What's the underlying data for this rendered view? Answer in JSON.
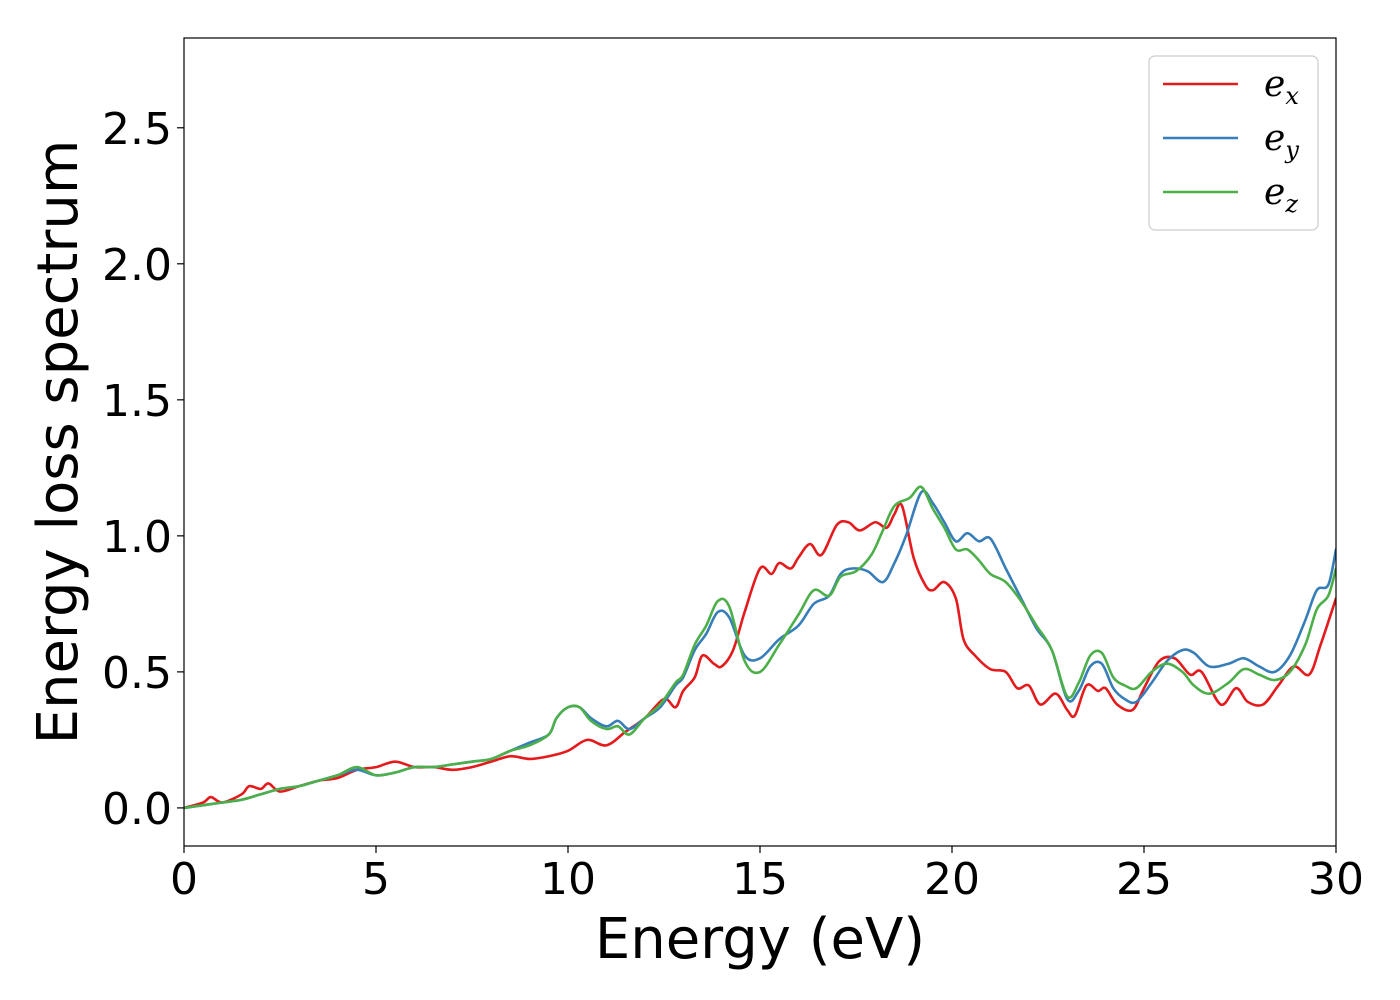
{
  "chart_data": {
    "type": "line",
    "xlabel": "Energy (eV)",
    "ylabel": "Energy loss spectrum",
    "xlim": [
      0,
      30
    ],
    "ylim": [
      -0.14,
      2.83
    ],
    "xticks": [
      0,
      5,
      10,
      15,
      20,
      25,
      30
    ],
    "xtick_labels": [
      "0",
      "5",
      "10",
      "15",
      "20",
      "25",
      "30"
    ],
    "yticks": [
      0.0,
      0.5,
      1.0,
      1.5,
      2.0,
      2.5
    ],
    "ytick_labels": [
      "0.0",
      "0.5",
      "1.0",
      "1.5",
      "2.0",
      "2.5"
    ],
    "grid": false,
    "legend_position": "top-right",
    "series": [
      {
        "name": "e_x",
        "legend_base": "e",
        "legend_sub": "x",
        "color": "#e41a1c",
        "points": [
          [
            0,
            0
          ],
          [
            0.5,
            0.02
          ],
          [
            0.7,
            0.04
          ],
          [
            1,
            0.02
          ],
          [
            1.5,
            0.05
          ],
          [
            1.7,
            0.08
          ],
          [
            2,
            0.07
          ],
          [
            2.2,
            0.09
          ],
          [
            2.5,
            0.06
          ],
          [
            3,
            0.08
          ],
          [
            3.5,
            0.1
          ],
          [
            4,
            0.11
          ],
          [
            4.5,
            0.14
          ],
          [
            5,
            0.15
          ],
          [
            5.5,
            0.17
          ],
          [
            6,
            0.15
          ],
          [
            6.5,
            0.15
          ],
          [
            7,
            0.14
          ],
          [
            7.5,
            0.15
          ],
          [
            8,
            0.17
          ],
          [
            8.5,
            0.19
          ],
          [
            9,
            0.18
          ],
          [
            9.5,
            0.19
          ],
          [
            10,
            0.21
          ],
          [
            10.5,
            0.25
          ],
          [
            11,
            0.23
          ],
          [
            11.5,
            0.28
          ],
          [
            12,
            0.33
          ],
          [
            12.5,
            0.4
          ],
          [
            12.8,
            0.37
          ],
          [
            13,
            0.43
          ],
          [
            13.3,
            0.48
          ],
          [
            13.5,
            0.56
          ],
          [
            13.8,
            0.53
          ],
          [
            14,
            0.52
          ],
          [
            14.3,
            0.58
          ],
          [
            14.6,
            0.72
          ],
          [
            15,
            0.88
          ],
          [
            15.3,
            0.86
          ],
          [
            15.5,
            0.9
          ],
          [
            15.8,
            0.88
          ],
          [
            16,
            0.92
          ],
          [
            16.3,
            0.97
          ],
          [
            16.6,
            0.93
          ],
          [
            17,
            1.04
          ],
          [
            17.3,
            1.05
          ],
          [
            17.6,
            1.02
          ],
          [
            18,
            1.05
          ],
          [
            18.3,
            1.03
          ],
          [
            18.5,
            1.08
          ],
          [
            18.7,
            1.11
          ],
          [
            19,
            0.92
          ],
          [
            19.3,
            0.82
          ],
          [
            19.5,
            0.8
          ],
          [
            19.8,
            0.83
          ],
          [
            20.1,
            0.77
          ],
          [
            20.3,
            0.62
          ],
          [
            20.6,
            0.56
          ],
          [
            21,
            0.51
          ],
          [
            21.4,
            0.5
          ],
          [
            21.7,
            0.44
          ],
          [
            22,
            0.45
          ],
          [
            22.3,
            0.38
          ],
          [
            22.7,
            0.42
          ],
          [
            23,
            0.36
          ],
          [
            23.2,
            0.34
          ],
          [
            23.5,
            0.45
          ],
          [
            23.8,
            0.43
          ],
          [
            24,
            0.44
          ],
          [
            24.3,
            0.38
          ],
          [
            24.7,
            0.36
          ],
          [
            25,
            0.44
          ],
          [
            25.4,
            0.54
          ],
          [
            25.8,
            0.55
          ],
          [
            26.2,
            0.49
          ],
          [
            26.5,
            0.5
          ],
          [
            27,
            0.38
          ],
          [
            27.4,
            0.44
          ],
          [
            27.7,
            0.39
          ],
          [
            28.1,
            0.38
          ],
          [
            28.5,
            0.45
          ],
          [
            28.9,
            0.52
          ],
          [
            29.3,
            0.49
          ],
          [
            29.6,
            0.6
          ],
          [
            30,
            0.77
          ]
        ]
      },
      {
        "name": "e_y",
        "legend_base": "e",
        "legend_sub": "y",
        "color": "#377eb8",
        "points": [
          [
            0,
            0
          ],
          [
            0.5,
            0.01
          ],
          [
            1,
            0.02
          ],
          [
            1.5,
            0.03
          ],
          [
            2,
            0.05
          ],
          [
            2.5,
            0.07
          ],
          [
            3,
            0.08
          ],
          [
            3.5,
            0.1
          ],
          [
            4,
            0.12
          ],
          [
            4.5,
            0.14
          ],
          [
            5,
            0.12
          ],
          [
            5.5,
            0.13
          ],
          [
            6,
            0.15
          ],
          [
            6.5,
            0.15
          ],
          [
            7,
            0.16
          ],
          [
            7.5,
            0.17
          ],
          [
            8,
            0.18
          ],
          [
            8.5,
            0.21
          ],
          [
            9,
            0.24
          ],
          [
            9.5,
            0.27
          ],
          [
            9.7,
            0.33
          ],
          [
            10,
            0.37
          ],
          [
            10.3,
            0.37
          ],
          [
            10.6,
            0.33
          ],
          [
            11,
            0.3
          ],
          [
            11.3,
            0.32
          ],
          [
            11.6,
            0.29
          ],
          [
            12,
            0.33
          ],
          [
            12.4,
            0.37
          ],
          [
            12.8,
            0.45
          ],
          [
            13,
            0.48
          ],
          [
            13.3,
            0.58
          ],
          [
            13.6,
            0.64
          ],
          [
            13.9,
            0.72
          ],
          [
            14.2,
            0.7
          ],
          [
            14.6,
            0.56
          ],
          [
            15,
            0.55
          ],
          [
            15.5,
            0.62
          ],
          [
            16,
            0.67
          ],
          [
            16.4,
            0.75
          ],
          [
            16.8,
            0.78
          ],
          [
            17.1,
            0.86
          ],
          [
            17.4,
            0.88
          ],
          [
            17.8,
            0.87
          ],
          [
            18.2,
            0.83
          ],
          [
            18.5,
            0.9
          ],
          [
            18.8,
            1.0
          ],
          [
            19.2,
            1.16
          ],
          [
            19.5,
            1.12
          ],
          [
            19.8,
            1.05
          ],
          [
            20.1,
            0.98
          ],
          [
            20.4,
            1.01
          ],
          [
            20.7,
            0.98
          ],
          [
            21,
            0.99
          ],
          [
            21.4,
            0.88
          ],
          [
            21.8,
            0.77
          ],
          [
            22.2,
            0.66
          ],
          [
            22.6,
            0.58
          ],
          [
            23,
            0.4
          ],
          [
            23.3,
            0.43
          ],
          [
            23.6,
            0.52
          ],
          [
            23.9,
            0.53
          ],
          [
            24.2,
            0.44
          ],
          [
            24.5,
            0.4
          ],
          [
            24.8,
            0.39
          ],
          [
            25.2,
            0.46
          ],
          [
            25.6,
            0.54
          ],
          [
            26,
            0.58
          ],
          [
            26.3,
            0.57
          ],
          [
            26.7,
            0.52
          ],
          [
            27.2,
            0.53
          ],
          [
            27.6,
            0.55
          ],
          [
            28,
            0.52
          ],
          [
            28.4,
            0.5
          ],
          [
            28.8,
            0.56
          ],
          [
            29.2,
            0.69
          ],
          [
            29.5,
            0.8
          ],
          [
            29.8,
            0.82
          ],
          [
            30,
            0.95
          ]
        ]
      },
      {
        "name": "e_z",
        "legend_base": "e",
        "legend_sub": "z",
        "color": "#4daf4a",
        "points": [
          [
            0,
            0
          ],
          [
            0.5,
            0.01
          ],
          [
            1,
            0.02
          ],
          [
            1.5,
            0.03
          ],
          [
            2,
            0.05
          ],
          [
            2.5,
            0.07
          ],
          [
            3,
            0.08
          ],
          [
            3.5,
            0.1
          ],
          [
            4,
            0.12
          ],
          [
            4.5,
            0.15
          ],
          [
            5,
            0.12
          ],
          [
            5.5,
            0.13
          ],
          [
            6,
            0.15
          ],
          [
            6.5,
            0.15
          ],
          [
            7,
            0.16
          ],
          [
            7.5,
            0.17
          ],
          [
            8,
            0.18
          ],
          [
            8.5,
            0.21
          ],
          [
            9,
            0.23
          ],
          [
            9.5,
            0.27
          ],
          [
            9.7,
            0.33
          ],
          [
            10,
            0.37
          ],
          [
            10.3,
            0.37
          ],
          [
            10.6,
            0.32
          ],
          [
            11,
            0.29
          ],
          [
            11.3,
            0.3
          ],
          [
            11.6,
            0.27
          ],
          [
            12,
            0.33
          ],
          [
            12.4,
            0.38
          ],
          [
            12.8,
            0.46
          ],
          [
            13,
            0.49
          ],
          [
            13.3,
            0.6
          ],
          [
            13.6,
            0.67
          ],
          [
            13.9,
            0.76
          ],
          [
            14.2,
            0.74
          ],
          [
            14.6,
            0.54
          ],
          [
            15,
            0.5
          ],
          [
            15.5,
            0.6
          ],
          [
            16,
            0.71
          ],
          [
            16.4,
            0.8
          ],
          [
            16.8,
            0.78
          ],
          [
            17.1,
            0.85
          ],
          [
            17.5,
            0.87
          ],
          [
            17.9,
            0.93
          ],
          [
            18.2,
            1.02
          ],
          [
            18.5,
            1.11
          ],
          [
            18.9,
            1.14
          ],
          [
            19.2,
            1.18
          ],
          [
            19.5,
            1.1
          ],
          [
            19.8,
            1.03
          ],
          [
            20.1,
            0.95
          ],
          [
            20.4,
            0.95
          ],
          [
            20.7,
            0.91
          ],
          [
            21,
            0.86
          ],
          [
            21.4,
            0.83
          ],
          [
            21.8,
            0.76
          ],
          [
            22.2,
            0.67
          ],
          [
            22.6,
            0.58
          ],
          [
            23,
            0.41
          ],
          [
            23.3,
            0.46
          ],
          [
            23.6,
            0.56
          ],
          [
            23.9,
            0.57
          ],
          [
            24.2,
            0.48
          ],
          [
            24.5,
            0.45
          ],
          [
            24.8,
            0.44
          ],
          [
            25.2,
            0.5
          ],
          [
            25.6,
            0.53
          ],
          [
            26,
            0.5
          ],
          [
            26.3,
            0.45
          ],
          [
            26.7,
            0.42
          ],
          [
            27.2,
            0.46
          ],
          [
            27.6,
            0.51
          ],
          [
            28,
            0.49
          ],
          [
            28.4,
            0.47
          ],
          [
            28.8,
            0.5
          ],
          [
            29.2,
            0.6
          ],
          [
            29.5,
            0.73
          ],
          [
            29.8,
            0.78
          ],
          [
            30,
            0.88
          ]
        ]
      }
    ]
  }
}
